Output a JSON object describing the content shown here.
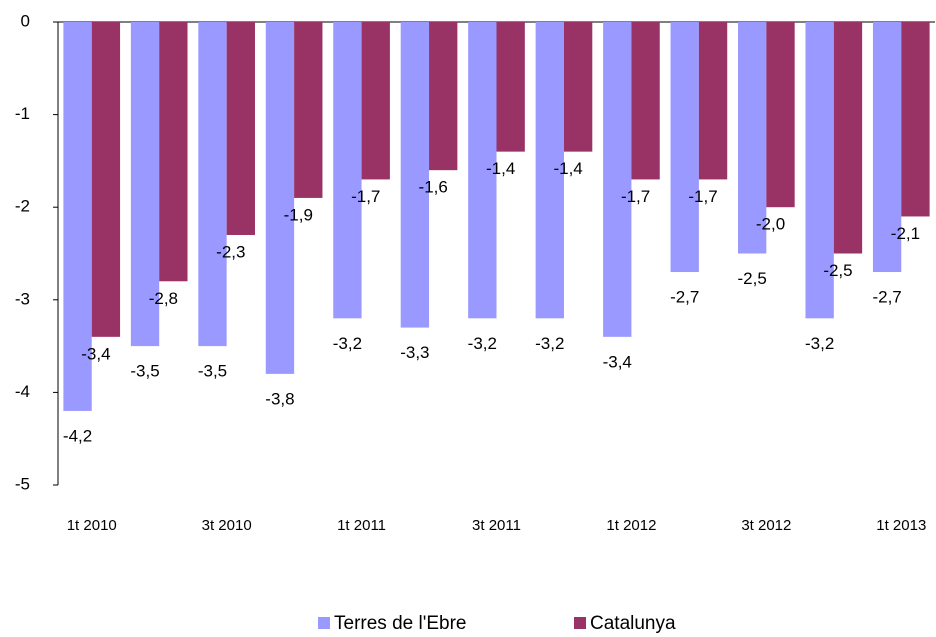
{
  "chart_data": {
    "type": "bar",
    "categories": [
      "1t 2010",
      null,
      "3t 2010",
      null,
      "1t 2011",
      null,
      "3t 2011",
      null,
      "1t 2012",
      null,
      "3t 2012",
      null,
      "1t 2013"
    ],
    "series": [
      {
        "name": "Terres de l'Ebre",
        "color": "#9999ff",
        "values": [
          -4.2,
          -3.5,
          -3.5,
          -3.8,
          -3.2,
          -3.3,
          -3.2,
          -3.2,
          -3.4,
          -2.7,
          -2.5,
          -3.2,
          -2.7
        ],
        "value_labels": [
          "-4,2",
          "-3,5",
          "-3,5",
          "-3,8",
          "-3,2",
          "-3,3",
          "-3,2",
          "-3,2",
          "-3,4",
          "-2,7",
          "-2,5",
          "-3,2",
          "-2,7"
        ]
      },
      {
        "name": "Catalunya",
        "color": "#993366",
        "values": [
          -3.4,
          -2.8,
          -2.3,
          -1.9,
          -1.7,
          -1.6,
          -1.4,
          -1.4,
          -1.7,
          -1.7,
          -2.0,
          -2.5,
          -2.1
        ],
        "value_labels": [
          "-3,4",
          "-2,8",
          "-2,3",
          "-1,9",
          "-1,7",
          "-1,6",
          "-1,4",
          "-1,4",
          "-1,7",
          "-1,7",
          "-2,0",
          "-2,5",
          "-2,1"
        ]
      }
    ],
    "ylim": [
      -5,
      0
    ],
    "yticks": [
      0,
      -1,
      -2,
      -3,
      -4,
      -5
    ],
    "grid": false,
    "legend": "bottom"
  }
}
